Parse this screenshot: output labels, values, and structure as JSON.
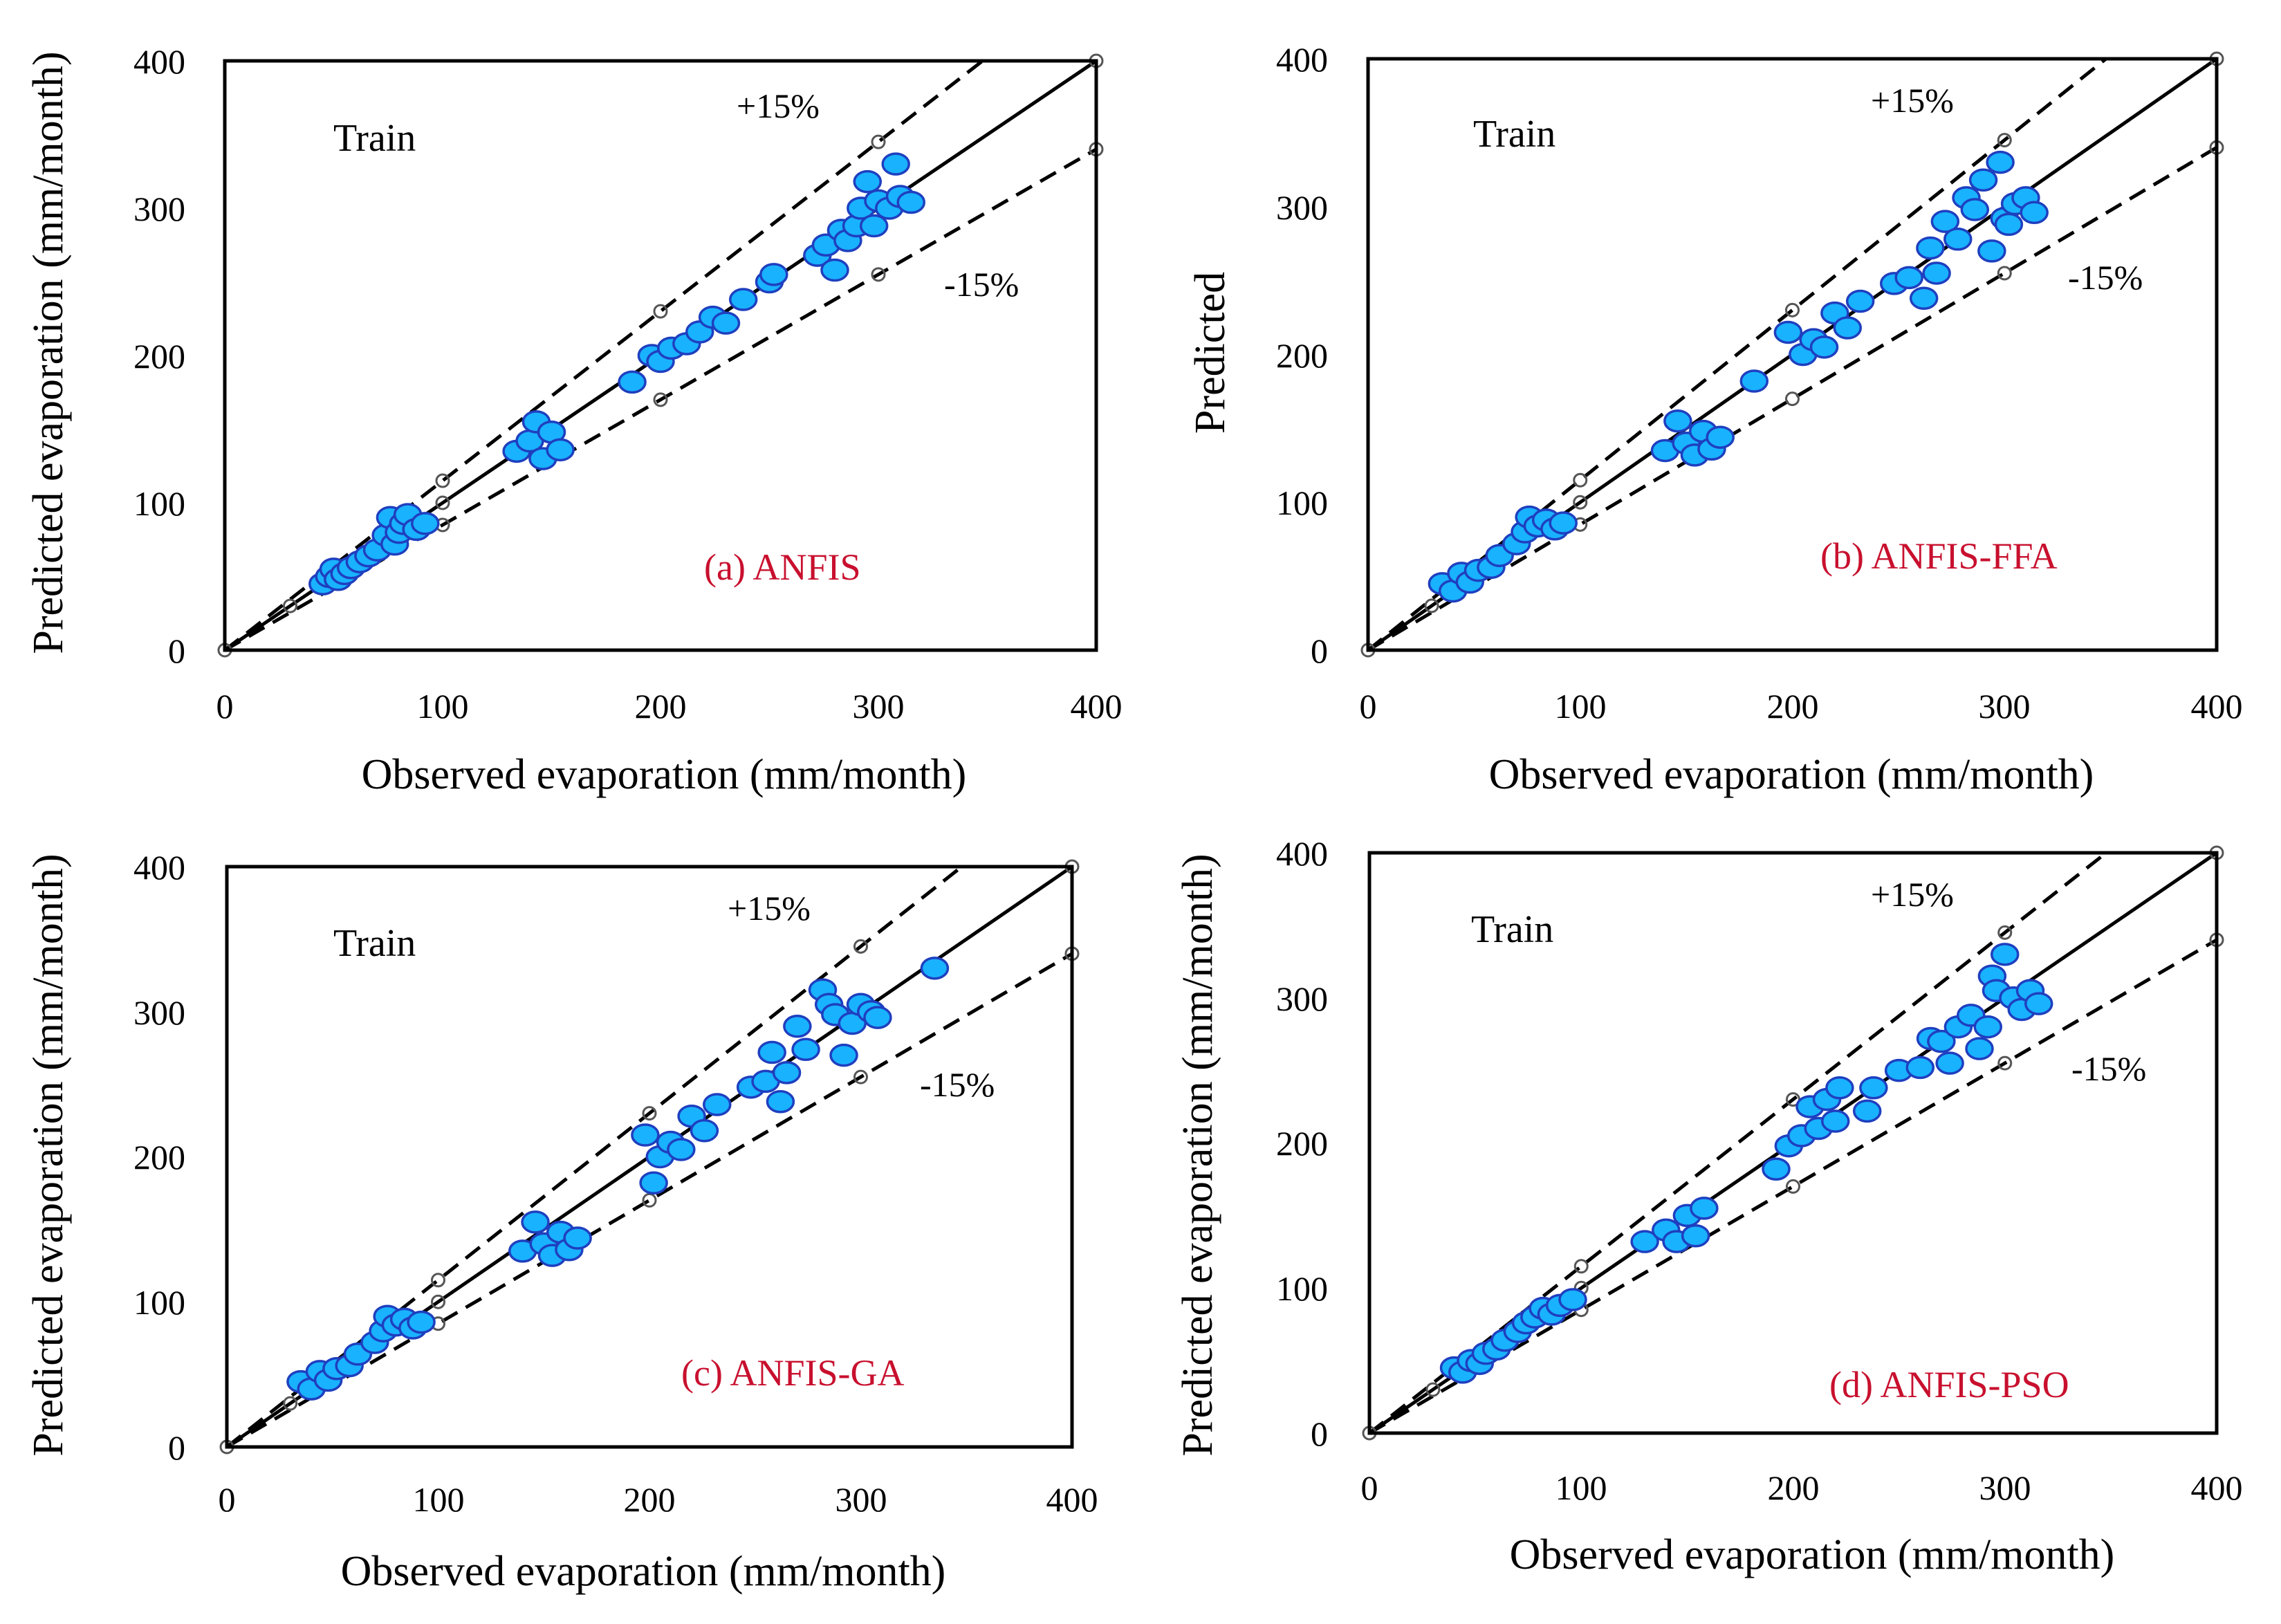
{
  "figure": {
    "colors": {
      "point_fill": "#19b2ff",
      "point_stroke": "#1f3fbf",
      "panel_label": "#c8102e",
      "line": "#000000"
    },
    "band_plus_label": "+15%",
    "band_minus_label": "-15%"
  },
  "chart_data": [
    {
      "type": "scatter",
      "title": "(a) ANFIS",
      "annotation": "Train",
      "xlabel": "Observed evaporation (mm/month)",
      "ylabel": "Predicted evaporation (mm/month)",
      "xlim": [
        0,
        400
      ],
      "ylim": [
        0,
        400
      ],
      "xticks": [
        "0",
        "100",
        "200",
        "300",
        "400"
      ],
      "yticks": [
        "0",
        "100",
        "200",
        "300",
        "400"
      ],
      "reference_lines": [
        "1:1",
        "+15%",
        "-15%"
      ],
      "points": [
        [
          45,
          45
        ],
        [
          48,
          50
        ],
        [
          50,
          55
        ],
        [
          52,
          48
        ],
        [
          55,
          52
        ],
        [
          58,
          56
        ],
        [
          62,
          60
        ],
        [
          66,
          64
        ],
        [
          70,
          68
        ],
        [
          74,
          78
        ],
        [
          76,
          90
        ],
        [
          78,
          72
        ],
        [
          80,
          80
        ],
        [
          82,
          86
        ],
        [
          84,
          92
        ],
        [
          88,
          82
        ],
        [
          92,
          86
        ],
        [
          134,
          135
        ],
        [
          140,
          142
        ],
        [
          143,
          155
        ],
        [
          146,
          130
        ],
        [
          150,
          148
        ],
        [
          154,
          136
        ],
        [
          187,
          182
        ],
        [
          196,
          200
        ],
        [
          200,
          196
        ],
        [
          205,
          205
        ],
        [
          212,
          208
        ],
        [
          218,
          216
        ],
        [
          224,
          226
        ],
        [
          230,
          222
        ],
        [
          238,
          238
        ],
        [
          250,
          250
        ],
        [
          252,
          255
        ],
        [
          272,
          268
        ],
        [
          276,
          275
        ],
        [
          280,
          258
        ],
        [
          283,
          285
        ],
        [
          286,
          278
        ],
        [
          290,
          288
        ],
        [
          292,
          300
        ],
        [
          295,
          318
        ],
        [
          298,
          288
        ],
        [
          300,
          305
        ],
        [
          305,
          300
        ],
        [
          308,
          330
        ],
        [
          310,
          308
        ],
        [
          315,
          304
        ]
      ]
    },
    {
      "type": "scatter",
      "title": "(b) ANFIS-FFA",
      "annotation": "Train",
      "xlabel": "Observed evaporation (mm/month)",
      "ylabel": "Predicted",
      "xlim": [
        0,
        400
      ],
      "ylim": [
        0,
        400
      ],
      "xticks": [
        "0",
        "100",
        "200",
        "300",
        "400"
      ],
      "yticks": [
        "0",
        "100",
        "200",
        "300",
        "400"
      ],
      "reference_lines": [
        "1:1",
        "+15%",
        "-15%"
      ],
      "points": [
        [
          35,
          45
        ],
        [
          40,
          40
        ],
        [
          44,
          52
        ],
        [
          48,
          46
        ],
        [
          52,
          54
        ],
        [
          58,
          56
        ],
        [
          62,
          64
        ],
        [
          70,
          72
        ],
        [
          74,
          80
        ],
        [
          76,
          90
        ],
        [
          80,
          84
        ],
        [
          84,
          88
        ],
        [
          88,
          82
        ],
        [
          92,
          86
        ],
        [
          140,
          135
        ],
        [
          146,
          155
        ],
        [
          150,
          140
        ],
        [
          154,
          132
        ],
        [
          158,
          148
        ],
        [
          162,
          136
        ],
        [
          166,
          144
        ],
        [
          182,
          182
        ],
        [
          198,
          215
        ],
        [
          205,
          200
        ],
        [
          210,
          210
        ],
        [
          215,
          205
        ],
        [
          220,
          228
        ],
        [
          226,
          218
        ],
        [
          232,
          236
        ],
        [
          248,
          248
        ],
        [
          255,
          252
        ],
        [
          262,
          238
        ],
        [
          265,
          272
        ],
        [
          268,
          255
        ],
        [
          272,
          290
        ],
        [
          278,
          278
        ],
        [
          282,
          306
        ],
        [
          286,
          298
        ],
        [
          290,
          318
        ],
        [
          294,
          270
        ],
        [
          298,
          330
        ],
        [
          300,
          292
        ],
        [
          302,
          288
        ],
        [
          305,
          302
        ],
        [
          310,
          306
        ],
        [
          314,
          296
        ]
      ]
    },
    {
      "type": "scatter",
      "title": "(c) ANFIS-GA",
      "annotation": "Train",
      "xlabel": "Observed evaporation (mm/month)",
      "ylabel": "Predicted evaporation (mm/month)",
      "xlim": [
        0,
        400
      ],
      "ylim": [
        0,
        400
      ],
      "xticks": [
        "0",
        "100",
        "200",
        "300",
        "400"
      ],
      "yticks": [
        "0",
        "100",
        "200",
        "300",
        "400"
      ],
      "reference_lines": [
        "1:1",
        "+15%",
        "-15%"
      ],
      "points": [
        [
          35,
          45
        ],
        [
          40,
          40
        ],
        [
          44,
          52
        ],
        [
          48,
          46
        ],
        [
          52,
          54
        ],
        [
          58,
          56
        ],
        [
          62,
          64
        ],
        [
          70,
          72
        ],
        [
          74,
          80
        ],
        [
          76,
          90
        ],
        [
          80,
          84
        ],
        [
          84,
          88
        ],
        [
          88,
          82
        ],
        [
          92,
          86
        ],
        [
          140,
          135
        ],
        [
          146,
          155
        ],
        [
          150,
          140
        ],
        [
          154,
          132
        ],
        [
          158,
          148
        ],
        [
          162,
          136
        ],
        [
          166,
          144
        ],
        [
          198,
          215
        ],
        [
          202,
          182
        ],
        [
          205,
          200
        ],
        [
          210,
          210
        ],
        [
          215,
          205
        ],
        [
          220,
          228
        ],
        [
          226,
          218
        ],
        [
          232,
          236
        ],
        [
          248,
          248
        ],
        [
          255,
          252
        ],
        [
          258,
          272
        ],
        [
          262,
          238
        ],
        [
          265,
          258
        ],
        [
          270,
          290
        ],
        [
          274,
          274
        ],
        [
          282,
          315
        ],
        [
          285,
          305
        ],
        [
          288,
          298
        ],
        [
          292,
          270
        ],
        [
          296,
          292
        ],
        [
          300,
          305
        ],
        [
          305,
          300
        ],
        [
          308,
          296
        ],
        [
          335,
          330
        ]
      ]
    },
    {
      "type": "scatter",
      "title": "(d) ANFIS-PSO",
      "annotation": "Train",
      "xlabel": "Observed evaporation (mm/month)",
      "ylabel": "Predicted evaporation (mm/month)",
      "xlim": [
        0,
        400
      ],
      "ylim": [
        0,
        400
      ],
      "xticks": [
        "0",
        "100",
        "200",
        "300",
        "400"
      ],
      "yticks": [
        "0",
        "100",
        "200",
        "300",
        "400"
      ],
      "reference_lines": [
        "1:1",
        "+15%",
        "-15%"
      ],
      "points": [
        [
          40,
          45
        ],
        [
          44,
          42
        ],
        [
          48,
          50
        ],
        [
          52,
          48
        ],
        [
          55,
          55
        ],
        [
          60,
          58
        ],
        [
          64,
          64
        ],
        [
          70,
          70
        ],
        [
          74,
          76
        ],
        [
          78,
          80
        ],
        [
          82,
          86
        ],
        [
          86,
          82
        ],
        [
          90,
          88
        ],
        [
          96,
          92
        ],
        [
          130,
          132
        ],
        [
          140,
          140
        ],
        [
          145,
          132
        ],
        [
          150,
          150
        ],
        [
          154,
          136
        ],
        [
          158,
          155
        ],
        [
          192,
          182
        ],
        [
          198,
          198
        ],
        [
          204,
          205
        ],
        [
          208,
          225
        ],
        [
          212,
          210
        ],
        [
          216,
          230
        ],
        [
          220,
          215
        ],
        [
          222,
          238
        ],
        [
          235,
          222
        ],
        [
          238,
          238
        ],
        [
          250,
          250
        ],
        [
          260,
          252
        ],
        [
          265,
          272
        ],
        [
          270,
          270
        ],
        [
          274,
          255
        ],
        [
          278,
          280
        ],
        [
          284,
          288
        ],
        [
          288,
          265
        ],
        [
          292,
          280
        ],
        [
          294,
          315
        ],
        [
          296,
          305
        ],
        [
          300,
          330
        ],
        [
          304,
          300
        ],
        [
          308,
          292
        ],
        [
          312,
          305
        ],
        [
          316,
          296
        ]
      ]
    }
  ]
}
